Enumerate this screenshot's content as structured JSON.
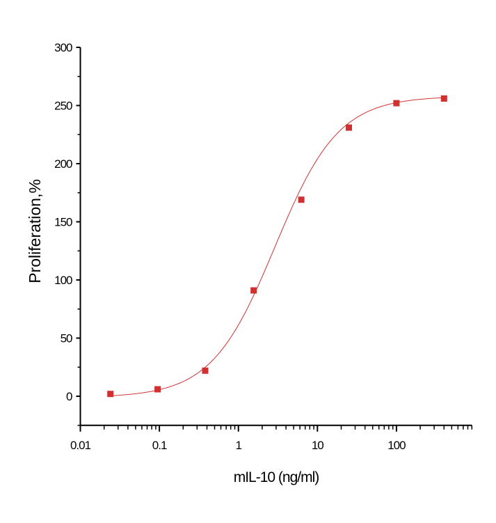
{
  "chart_data": {
    "type": "scatter",
    "title": "",
    "xlabel": "mIL-10 (ng/ml)",
    "ylabel": "Proliferation,%",
    "xscale": "log",
    "xlim": [
      0.01,
      900
    ],
    "ylim": [
      -25,
      300
    ],
    "xticks": [
      0.01,
      0.1,
      1,
      10,
      100
    ],
    "xtick_labels": [
      "0.01",
      "0.1",
      "1",
      "10",
      "100"
    ],
    "yticks": [
      0,
      50,
      100,
      150,
      200,
      250,
      300
    ],
    "ytick_labels": [
      "0",
      "50",
      "100",
      "150",
      "200",
      "250",
      "300"
    ],
    "grid": false,
    "series": [
      {
        "name": "data",
        "marker": "square",
        "color": "#d03030",
        "x": [
          0.024,
          0.095,
          0.38,
          1.56,
          6.25,
          25,
          100,
          400
        ],
        "y": [
          2,
          6,
          22,
          91,
          169,
          231,
          252,
          256
        ]
      }
    ],
    "fit": {
      "type": "4PL sigmoid",
      "color": "#d03030"
    }
  }
}
